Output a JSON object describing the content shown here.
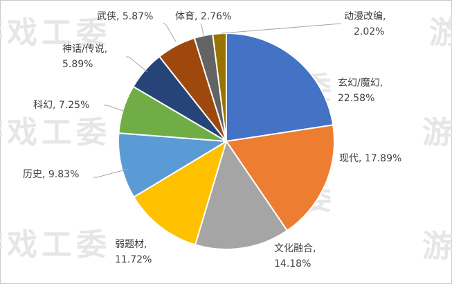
{
  "watermark_text": "游戏工委",
  "chart_data": {
    "type": "pie",
    "start_angle_deg": 0,
    "direction": "clockwise",
    "slices": [
      {
        "name": "玄幻/魔幻",
        "value": 22.58,
        "pct_label": "22.58%",
        "color": "#4472C4"
      },
      {
        "name": "现代",
        "value": 17.89,
        "pct_label": "17.89%",
        "color": "#ED7D31"
      },
      {
        "name": "文化融合",
        "value": 14.18,
        "pct_label": "14.18%",
        "color": "#A5A5A5"
      },
      {
        "name": "弱题材",
        "value": 11.72,
        "pct_label": "11.72%",
        "color": "#FFC000"
      },
      {
        "name": "历史",
        "value": 9.83,
        "pct_label": "9.83%",
        "color": "#5B9BD5"
      },
      {
        "name": "科幻",
        "value": 7.25,
        "pct_label": "7.25%",
        "color": "#70AD47"
      },
      {
        "name": "神话/传说",
        "value": 5.89,
        "pct_label": "5.89%",
        "color": "#264478"
      },
      {
        "name": "武侠",
        "value": 5.87,
        "pct_label": "5.87%",
        "color": "#9E480E"
      },
      {
        "name": "体育",
        "value": 2.76,
        "pct_label": "2.76%",
        "color": "#636363"
      },
      {
        "name": "动漫改编",
        "value": 2.02,
        "pct_label": "2.02%",
        "color": "#997300"
      }
    ]
  }
}
